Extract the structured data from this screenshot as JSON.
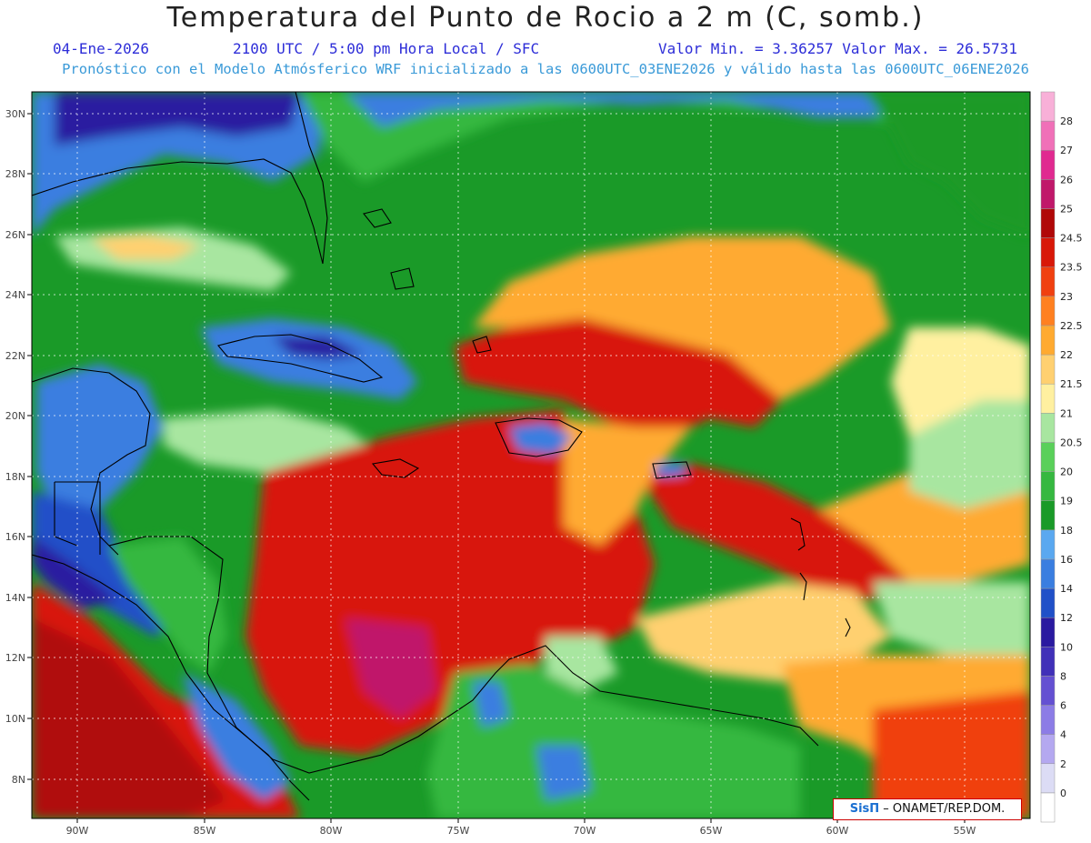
{
  "header": {
    "title": "Temperatura del Punto de Rocio a 2 m (C, somb.)",
    "date": "04-Ene-2026",
    "time": "2100 UTC / 5:00 pm Hora Local / SFC",
    "minmax": "Valor Min. = 3.36257  Valor Max. = 26.5731",
    "model_info": "Pronóstico con el Modelo Atmósferico WRF inicializado a las 0600UTC_03ENE2026 y válido hasta las  0600UTC_06ENE2026"
  },
  "axes": {
    "lat_labels": [
      "30N",
      "28N",
      "26N",
      "24N",
      "22N",
      "20N",
      "18N",
      "16N",
      "14N",
      "12N",
      "10N",
      "8N"
    ],
    "lon_labels": [
      "90W",
      "85W",
      "80W",
      "75W",
      "70W",
      "65W",
      "60W",
      "55W"
    ]
  },
  "colorbar": {
    "labels": [
      "0",
      "2",
      "4",
      "6",
      "8",
      "10",
      "12",
      "14",
      "16",
      "18",
      "19",
      "20",
      "20.5",
      "21",
      "21.5",
      "22",
      "22.5",
      "23",
      "23.5",
      "24.5",
      "25",
      "26",
      "27",
      "28"
    ],
    "colors": [
      "#ffffff",
      "#dcdcf5",
      "#b4a8f0",
      "#8c7ce6",
      "#6450d2",
      "#4030b8",
      "#2a1aa0",
      "#2050c8",
      "#3a7ee0",
      "#5aa8f0",
      "#1a9a28",
      "#36b840",
      "#5ad05a",
      "#a8e6a0",
      "#fff0a0",
      "#ffd070",
      "#ffaa30",
      "#ff8020",
      "#f04010",
      "#d81808",
      "#b00808",
      "#c0186a",
      "#e02a90",
      "#f070b8",
      "#f8b0d8"
    ]
  },
  "credit": {
    "logo": "SisΠ",
    "text": " – ONAMET/REP.DOM."
  }
}
